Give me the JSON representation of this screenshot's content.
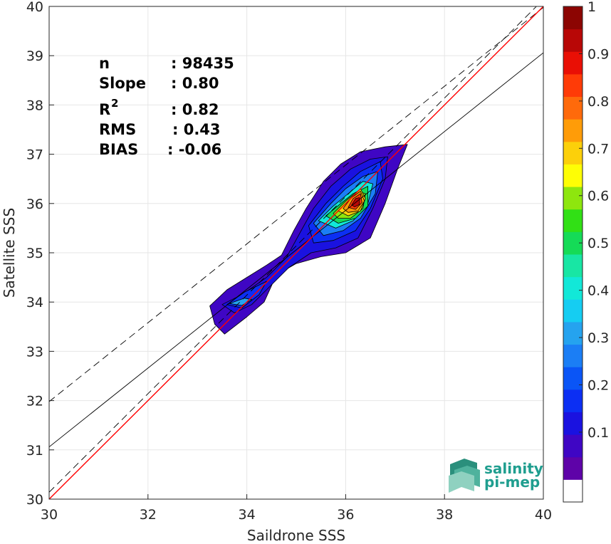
{
  "chart_data": {
    "type": "heatmap",
    "xlabel": "Saildrone SSS",
    "ylabel": "Satellite SSS",
    "xlim": [
      30,
      40
    ],
    "ylim": [
      30,
      40
    ],
    "xticks": [
      "30",
      "32",
      "34",
      "36",
      "38",
      "40"
    ],
    "yticks": [
      "30",
      "31",
      "32",
      "33",
      "34",
      "35",
      "36",
      "37",
      "38",
      "39",
      "40"
    ],
    "grid": true,
    "stats": {
      "n_label": "n",
      "n_value": ": 98435",
      "slope_label": "Slope",
      "slope_value": ": 0.80",
      "r2_label": "R",
      "r2_sup": "2",
      "r2_value": ": 0.82",
      "rms_label": "RMS",
      "rms_value": ": 0.43",
      "bias_label": "BIAS",
      "bias_value": ": -0.06"
    },
    "lines": {
      "identity": {
        "color": "#ff0000",
        "points": [
          [
            30,
            30
          ],
          [
            40,
            40
          ]
        ]
      },
      "fit": {
        "color": "#000000",
        "points": [
          [
            30,
            31.06
          ],
          [
            40,
            39.06
          ]
        ]
      },
      "upper_bound": {
        "color": "#000000",
        "dashed": true,
        "points": [
          [
            30,
            31.98
          ],
          [
            40,
            39.98
          ]
        ]
      },
      "lower_bound": {
        "color": "#000000",
        "dashed": true,
        "points": [
          [
            30,
            30.14
          ],
          [
            40,
            40.14
          ]
        ]
      }
    },
    "colorbar": {
      "ticks": [
        "0.1",
        "0.2",
        "0.3",
        "0.4",
        "0.5",
        "0.6",
        "0.7",
        "0.8",
        "0.9",
        "1"
      ],
      "levels": [
        "#ffffff",
        "#5e03a8",
        "#3f06c4",
        "#1a12e0",
        "#0c2ff3",
        "#0a55f6",
        "#1b7ef5",
        "#25a3ef",
        "#15cdf2",
        "#12e8d8",
        "#18e6a4",
        "#15db57",
        "#31e015",
        "#8ee60e",
        "#fefe05",
        "#fcd00a",
        "#ff9c08",
        "#ff6a0b",
        "#ff3b07",
        "#e90f05",
        "#b80706",
        "#8c0502"
      ]
    },
    "contours": [
      {
        "level": 0.05,
        "color": "#3f06c4",
        "points": [
          [
            33.25,
            33.92
          ],
          [
            33.6,
            34.25
          ],
          [
            34.0,
            34.5
          ],
          [
            34.4,
            34.75
          ],
          [
            34.7,
            34.95
          ],
          [
            34.95,
            35.45
          ],
          [
            35.2,
            35.9
          ],
          [
            35.55,
            36.45
          ],
          [
            35.9,
            36.8
          ],
          [
            36.3,
            37.05
          ],
          [
            36.8,
            37.15
          ],
          [
            37.25,
            37.2
          ],
          [
            37.05,
            36.7
          ],
          [
            36.8,
            36.0
          ],
          [
            36.5,
            35.3
          ],
          [
            36.0,
            35.0
          ],
          [
            35.5,
            34.92
          ],
          [
            35.0,
            34.78
          ],
          [
            34.6,
            34.55
          ],
          [
            34.35,
            34.0
          ],
          [
            34.0,
            33.7
          ],
          [
            33.55,
            33.35
          ],
          [
            33.35,
            33.55
          ]
        ]
      },
      {
        "level": 0.1,
        "color": "#1a12e0",
        "points": [
          [
            33.5,
            33.95
          ],
          [
            33.9,
            34.15
          ],
          [
            34.4,
            34.5
          ],
          [
            34.8,
            34.9
          ],
          [
            35.1,
            35.45
          ],
          [
            35.35,
            35.9
          ],
          [
            35.7,
            36.35
          ],
          [
            36.1,
            36.7
          ],
          [
            36.5,
            36.9
          ],
          [
            36.85,
            36.95
          ],
          [
            36.8,
            36.5
          ],
          [
            36.55,
            35.9
          ],
          [
            36.25,
            35.3
          ],
          [
            35.8,
            35.1
          ],
          [
            35.3,
            35.0
          ],
          [
            34.85,
            34.7
          ],
          [
            34.4,
            34.25
          ],
          [
            34.1,
            33.95
          ],
          [
            33.75,
            33.78
          ]
        ]
      },
      {
        "level": 0.2,
        "color": "#0c2ff3",
        "points": [
          [
            33.6,
            33.95
          ],
          [
            33.95,
            34.2
          ],
          [
            34.4,
            34.42
          ],
          [
            34.25,
            34.15
          ],
          [
            33.9,
            33.88
          ]
        ]
      },
      {
        "level": 0.2,
        "color": "#0c2ff3",
        "points": [
          [
            35.25,
            35.55
          ],
          [
            35.6,
            36.0
          ],
          [
            35.95,
            36.35
          ],
          [
            36.3,
            36.65
          ],
          [
            36.7,
            36.85
          ],
          [
            36.75,
            36.5
          ],
          [
            36.5,
            35.9
          ],
          [
            36.2,
            35.45
          ],
          [
            35.75,
            35.25
          ],
          [
            35.35,
            35.2
          ]
        ]
      },
      {
        "level": 0.3,
        "color": "#1b7ef5",
        "points": [
          [
            35.35,
            35.6
          ],
          [
            35.7,
            36.0
          ],
          [
            36.0,
            36.3
          ],
          [
            36.35,
            36.55
          ],
          [
            36.65,
            36.65
          ],
          [
            36.6,
            36.2
          ],
          [
            36.3,
            35.7
          ],
          [
            35.95,
            35.45
          ],
          [
            35.55,
            35.35
          ]
        ]
      },
      {
        "level": 0.3,
        "color": "#25a3ef",
        "points": [
          [
            33.65,
            33.97
          ],
          [
            33.95,
            34.08
          ],
          [
            34.1,
            34.05
          ],
          [
            33.9,
            33.93
          ]
        ]
      },
      {
        "level": 0.4,
        "color": "#12e8d8",
        "points": [
          [
            35.45,
            35.65
          ],
          [
            35.75,
            35.95
          ],
          [
            36.05,
            36.2
          ],
          [
            36.35,
            36.45
          ],
          [
            36.55,
            36.4
          ],
          [
            36.45,
            36.0
          ],
          [
            36.15,
            35.65
          ],
          [
            35.8,
            35.5
          ]
        ]
      },
      {
        "level": 0.5,
        "color": "#15db57",
        "points": [
          [
            35.6,
            35.75
          ],
          [
            35.9,
            36.0
          ],
          [
            36.15,
            36.2
          ],
          [
            36.45,
            36.35
          ],
          [
            36.45,
            35.95
          ],
          [
            36.2,
            35.7
          ],
          [
            35.85,
            35.6
          ]
        ]
      },
      {
        "level": 0.6,
        "color": "#8ee60e",
        "points": [
          [
            35.75,
            35.8
          ],
          [
            36.0,
            36.05
          ],
          [
            36.25,
            36.25
          ],
          [
            36.4,
            36.2
          ],
          [
            36.35,
            35.9
          ],
          [
            36.1,
            35.7
          ],
          [
            35.85,
            35.7
          ]
        ]
      },
      {
        "level": 0.7,
        "color": "#fcd00a",
        "points": [
          [
            35.85,
            35.85
          ],
          [
            36.1,
            36.1
          ],
          [
            36.3,
            36.3
          ],
          [
            36.4,
            36.1
          ],
          [
            36.3,
            35.85
          ],
          [
            36.05,
            35.75
          ]
        ]
      },
      {
        "level": 0.8,
        "color": "#ff9c08",
        "points": [
          [
            35.95,
            35.9
          ],
          [
            36.1,
            36.1
          ],
          [
            36.3,
            36.25
          ],
          [
            36.38,
            36.05
          ],
          [
            36.25,
            35.85
          ],
          [
            36.05,
            35.82
          ]
        ]
      },
      {
        "level": 0.9,
        "color": "#ff3b07",
        "points": [
          [
            36.05,
            35.92
          ],
          [
            36.15,
            36.1
          ],
          [
            36.3,
            36.2
          ],
          [
            36.33,
            36.02
          ],
          [
            36.2,
            35.88
          ]
        ]
      },
      {
        "level": 1.0,
        "color": "#b80706",
        "points": [
          [
            36.12,
            35.97
          ],
          [
            36.2,
            36.1
          ],
          [
            36.28,
            36.12
          ],
          [
            36.28,
            35.98
          ],
          [
            36.18,
            35.93
          ]
        ]
      }
    ]
  },
  "logo": {
    "line1": "salinity",
    "line2": "pi-mep"
  }
}
